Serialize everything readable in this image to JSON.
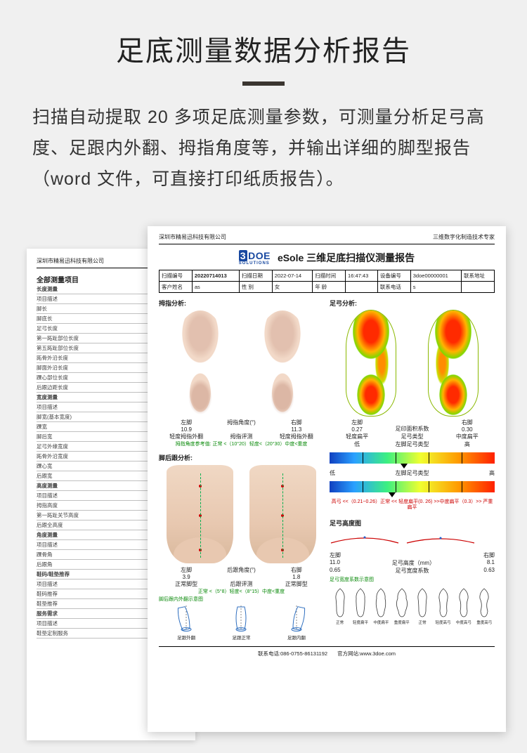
{
  "hero": {
    "title": "足底测量数据分析报告",
    "desc": "扫描自动提取 20 多项足底测量参数，可测量分析足弓高度、足跟内外翻、拇指角度等，并输出详细的脚型报告（word 文件，可直接打印纸质报告）。"
  },
  "back_sheet": {
    "company": "深圳市精易迅科技有限公司",
    "title": "全部测量项目",
    "groups": [
      {
        "name": "长度测量",
        "sub": "项目描述",
        "items": [
          "脚长",
          "脚底长",
          "足弓长度",
          "第一跖趾部位长度",
          "第五跖趾部位长度",
          "跖骨外沿长度",
          "脚面外沿长度",
          "踝心部位长度",
          "后跟边距长度"
        ]
      },
      {
        "name": "宽度测量",
        "sub": "项目描述",
        "items": [
          "脚宽(基本宽度)",
          "踝宽",
          "脚后宽",
          "足弓外缘宽度",
          "跖骨外沿宽度",
          "踝心宽",
          "后跟宽"
        ]
      },
      {
        "name": "高度测量",
        "sub": "项目描述",
        "items": [
          "拇指高度",
          "第一跖趾关节高度",
          "后跟全高度"
        ]
      },
      {
        "name": "角度测量",
        "sub": "项目描述",
        "items": [
          "踝骨角",
          "后跟角"
        ]
      },
      {
        "name": "鞋码/鞋垫推荐",
        "sub": "",
        "items": [
          "项目描述",
          "鞋码推荐",
          "鞋垫推荐"
        ]
      },
      {
        "name": "服务需求",
        "sub": "项目描述",
        "items": [
          "鞋垫定制服务"
        ]
      }
    ]
  },
  "front_sheet": {
    "company_left": "深圳市精易迅科技有限公司",
    "company_right": "三维数字化制造技术专家",
    "logo_main": "DOE",
    "logo_prefix": "3",
    "logo_sub": "SOLUTIONS",
    "report_title": "eSole 三维足底扫描仪测量报告",
    "info": {
      "scan_no_lbl": "扫描编号",
      "scan_no": "20220714013",
      "scan_date_lbl": "扫描日期",
      "scan_date": "2022-07-14",
      "scan_time_lbl": "扫描时间",
      "scan_time": "16:47:43",
      "device_lbl": "设备编号",
      "device": "3doe00000001",
      "contact_addr_lbl": "联系地址",
      "cust_lbl": "客户姓名",
      "cust": "as",
      "sex_lbl": "性    别",
      "sex": "女",
      "age_lbl": "年    龄",
      "phone_lbl": "联系电话",
      "phone": "s"
    },
    "sections": {
      "toe": "拇指分析:",
      "arch": "足弓分析:",
      "heel": "脚后跟分析:",
      "arch_height": "足弓高度图"
    },
    "toe_data": {
      "left_label": "左脚",
      "left_val": "10.9",
      "left_type": "轻度拇指外翻",
      "center_label1": "拇指角度(°)",
      "center_label2": "拇指评测",
      "right_label": "右脚",
      "right_val": "11.3",
      "right_type": "轻度拇指外翻",
      "note": "拇指角度参考值: 正常 <（10°20）轻度<（20°30）中度<重度"
    },
    "arch_data": {
      "left_label": "左脚",
      "left_val": "0.27",
      "left_type": "轻度扁平",
      "left_rank": "低",
      "center_label1": "足印面积系数",
      "center_label2": "足弓类型",
      "center_label3": "左脚足弓类型",
      "right_label": "右脚",
      "right_val": "0.30",
      "right_type": "中度扁平",
      "right_rank": "高",
      "bar2_left": "低",
      "bar2_center": "左脚足弓类型",
      "bar2_right": "高",
      "note": "高弓 <<（0.21~0.26）正常 <<  轻度扁平(0. 26) >>中度扁平（0.3）>>  严重扁平"
    },
    "heel_data": {
      "left_label": "左脚",
      "left_val": "3.9",
      "left_type": "正常脚型",
      "center_label1": "后跟角度(°)",
      "center_label2": "后跟评测",
      "right_label": "右脚",
      "right_val": "1.8",
      "right_type": "正常脚型",
      "note": "正常 <（5°8）轻度<（8°15）中度<重度",
      "diagram_title": "脚后跟内外翻示意图",
      "diagrams": [
        "足跟外翻",
        "足跟正常",
        "足跟内翻"
      ]
    },
    "arch_height": {
      "left_label": "左脚",
      "left_h": "11.0",
      "left_w": "0.65",
      "h_label": "足弓高度（mm）",
      "w_label": "足弓宽度系数",
      "right_label": "右脚",
      "right_h": "8.1",
      "right_w": "0.63",
      "diagram_title": "足弓宽度系数示意图",
      "outlines": [
        "正常",
        "轻度扁平",
        "中度扁平",
        "重度扁平",
        "正常",
        "轻度高弓",
        "中度高弓",
        "重度高弓"
      ]
    },
    "footer": {
      "phone_lbl": "联系电话:",
      "phone": "086-0755-86131192",
      "site_lbl": "官方网站:",
      "site": "www.3doe.com"
    },
    "colors": {
      "note_green": "#0a8a0a",
      "note_red": "#c00000",
      "logo_blue": "#1848a0"
    }
  }
}
